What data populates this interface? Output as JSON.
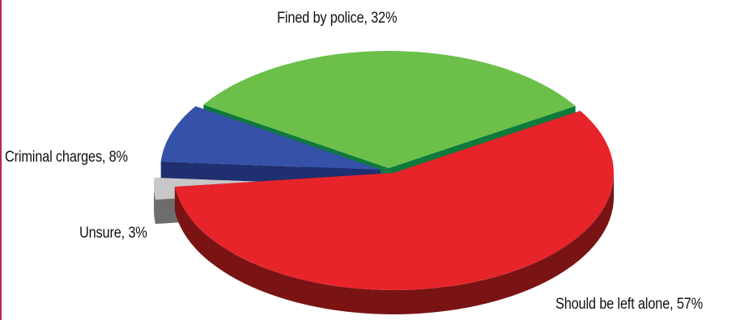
{
  "chart_data": {
    "type": "pie",
    "style": "3d-exploded",
    "title": "",
    "legend": "none",
    "slices": [
      {
        "label": "Should be left alone",
        "value": 57,
        "text": "Should be left alone, 57%",
        "color": "#e8242b",
        "side": "#7a1414"
      },
      {
        "label": "Fined by police",
        "value": 32,
        "text": "Fined by police, 32%",
        "color": "#6cc04a",
        "side": "#0e7a3c"
      },
      {
        "label": "Criminal charges",
        "value": 8,
        "text": "Criminal charges, 8%",
        "color": "#3552a8",
        "side": "#1f2f70"
      },
      {
        "label": "Unsure",
        "value": 3,
        "text": "Unsure, 3%",
        "color": "#c8c8c8",
        "side": "#6d6d6d"
      }
    ]
  },
  "frame": {
    "border_color": "#b5245c"
  }
}
